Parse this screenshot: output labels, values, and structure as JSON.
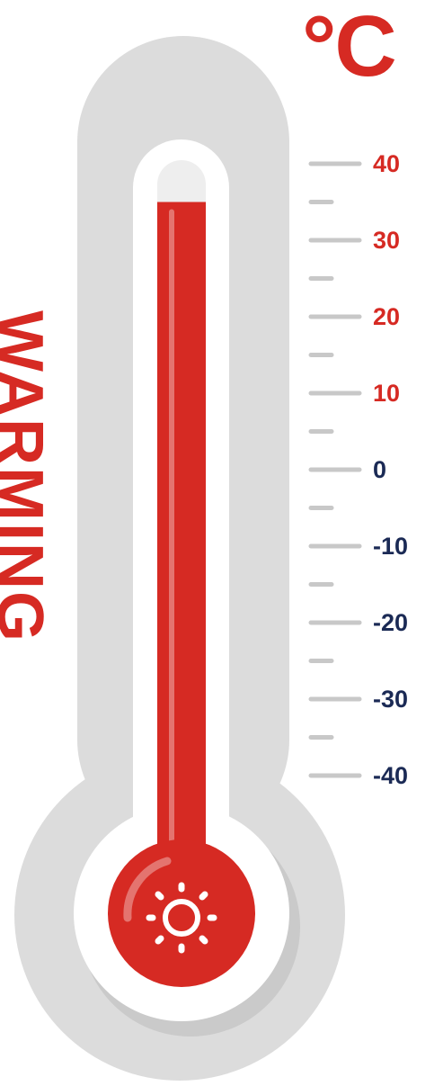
{
  "unit": "°C",
  "side_word": "WARMING",
  "scale": [
    {
      "label": "40",
      "value": 40,
      "kind": "positive"
    },
    {
      "label": "30",
      "value": 30,
      "kind": "positive"
    },
    {
      "label": "20",
      "value": 20,
      "kind": "positive"
    },
    {
      "label": "10",
      "value": 10,
      "kind": "positive"
    },
    {
      "label": "0",
      "value": 0,
      "kind": "zero"
    },
    {
      "label": "-10",
      "value": -10,
      "kind": "negative"
    },
    {
      "label": "-20",
      "value": -20,
      "kind": "negative"
    },
    {
      "label": "-30",
      "value": -30,
      "kind": "negative"
    },
    {
      "label": "-40",
      "value": -40,
      "kind": "negative"
    }
  ],
  "mercury_reading": 35,
  "bulb_icon": "sun-icon",
  "colors": {
    "accent_red": "#d62a23",
    "positive_label": "#d62a23",
    "nonpositive_label": "#1b2a55",
    "tick": "#c8c8c8",
    "frame": "#dcdcdc",
    "shadow": "#bcbcbc",
    "tube_empty": "#eeeeee"
  }
}
